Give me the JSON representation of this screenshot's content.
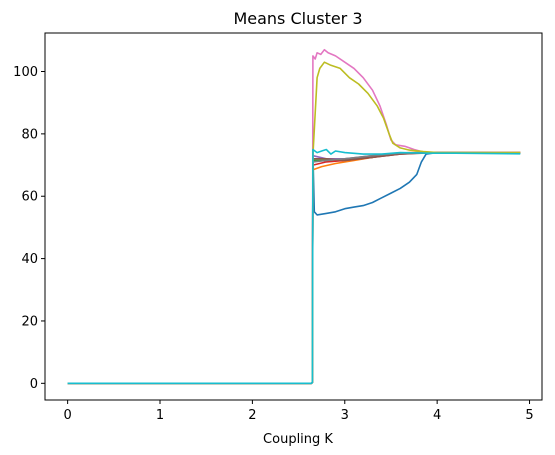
{
  "chart_data": {
    "type": "line",
    "title": "Means Cluster 3",
    "xlabel": "Coupling K",
    "ylabel": "",
    "xlim": [
      -0.245,
      5.135
    ],
    "ylim": [
      -5.35,
      112.35
    ],
    "xticks": [
      0,
      1,
      2,
      3,
      4,
      5
    ],
    "yticks": [
      0,
      20,
      40,
      60,
      80,
      100
    ],
    "grid": false,
    "series": [
      {
        "color": "#1f77b4",
        "points": [
          [
            0,
            0
          ],
          [
            2.64,
            0
          ],
          [
            2.65,
            0.3
          ],
          [
            2.655,
            74
          ],
          [
            2.67,
            55
          ],
          [
            2.7,
            54
          ],
          [
            2.8,
            54.5
          ],
          [
            2.9,
            55
          ],
          [
            3.0,
            56
          ],
          [
            3.1,
            56.5
          ],
          [
            3.2,
            57
          ],
          [
            3.3,
            58
          ],
          [
            3.4,
            59.5
          ],
          [
            3.5,
            61
          ],
          [
            3.6,
            62.5
          ],
          [
            3.7,
            64.5
          ],
          [
            3.78,
            67
          ],
          [
            3.83,
            71
          ],
          [
            3.88,
            73.5
          ],
          [
            4.0,
            74
          ],
          [
            4.5,
            74
          ],
          [
            4.9,
            73.8
          ]
        ]
      },
      {
        "color": "#ff7f0e",
        "points": [
          [
            0,
            0
          ],
          [
            2.64,
            0
          ],
          [
            2.65,
            0.3
          ],
          [
            2.655,
            68.5
          ],
          [
            2.75,
            69.5
          ],
          [
            2.9,
            70.5
          ],
          [
            3.1,
            71.5
          ],
          [
            3.3,
            72.5
          ],
          [
            3.5,
            73.5
          ],
          [
            3.7,
            74
          ],
          [
            4.0,
            74
          ],
          [
            4.5,
            73.8
          ],
          [
            4.9,
            74
          ]
        ]
      },
      {
        "color": "#2ca02c",
        "points": [
          [
            0,
            0
          ],
          [
            2.64,
            0
          ],
          [
            2.65,
            0.3
          ],
          [
            2.655,
            71.5
          ],
          [
            2.8,
            71.5
          ],
          [
            3.0,
            72
          ],
          [
            3.3,
            72.5
          ],
          [
            3.5,
            73.5
          ],
          [
            3.8,
            74
          ],
          [
            4.2,
            74
          ],
          [
            4.9,
            73.8
          ]
        ]
      },
      {
        "color": "#d62728",
        "points": [
          [
            0,
            0
          ],
          [
            2.64,
            0
          ],
          [
            2.65,
            0.3
          ],
          [
            2.655,
            70
          ],
          [
            2.8,
            71
          ],
          [
            3.0,
            71.5
          ],
          [
            3.3,
            72.5
          ],
          [
            3.6,
            73.5
          ],
          [
            3.9,
            74
          ],
          [
            4.9,
            74
          ]
        ]
      },
      {
        "color": "#9467bd",
        "points": [
          [
            0,
            0
          ],
          [
            2.64,
            0
          ],
          [
            2.65,
            0.3
          ],
          [
            2.655,
            73
          ],
          [
            2.8,
            72
          ],
          [
            3.0,
            72
          ],
          [
            3.3,
            73
          ],
          [
            3.6,
            73.8
          ],
          [
            4.0,
            74
          ],
          [
            4.9,
            73.8
          ]
        ]
      },
      {
        "color": "#8c564b",
        "points": [
          [
            0,
            0
          ],
          [
            2.64,
            0
          ],
          [
            2.65,
            0.3
          ],
          [
            2.655,
            72
          ],
          [
            2.8,
            72
          ],
          [
            3.0,
            71.5
          ],
          [
            3.3,
            72.5
          ],
          [
            3.6,
            73.5
          ],
          [
            4.0,
            74
          ],
          [
            4.9,
            74
          ]
        ]
      },
      {
        "color": "#e377c2",
        "points": [
          [
            0,
            0
          ],
          [
            2.64,
            0
          ],
          [
            2.65,
            0.3
          ],
          [
            2.655,
            105
          ],
          [
            2.68,
            104
          ],
          [
            2.7,
            106
          ],
          [
            2.74,
            105.5
          ],
          [
            2.78,
            107
          ],
          [
            2.82,
            106
          ],
          [
            2.9,
            105
          ],
          [
            3.0,
            103
          ],
          [
            3.1,
            101
          ],
          [
            3.2,
            98
          ],
          [
            3.3,
            94
          ],
          [
            3.38,
            89
          ],
          [
            3.45,
            83
          ],
          [
            3.5,
            78
          ],
          [
            3.55,
            76.5
          ],
          [
            3.65,
            76
          ],
          [
            3.75,
            75
          ],
          [
            3.85,
            74.2
          ],
          [
            4.0,
            74
          ],
          [
            4.9,
            74
          ]
        ]
      },
      {
        "color": "#7f7f7f",
        "points": [
          [
            0,
            0
          ],
          [
            2.64,
            0
          ],
          [
            2.65,
            0.3
          ],
          [
            2.655,
            71
          ],
          [
            2.8,
            71.5
          ],
          [
            3.0,
            72
          ],
          [
            3.3,
            73
          ],
          [
            3.6,
            73.8
          ],
          [
            4.0,
            74
          ],
          [
            4.9,
            73.8
          ]
        ]
      },
      {
        "color": "#bcbd22",
        "points": [
          [
            0,
            0
          ],
          [
            2.64,
            0
          ],
          [
            2.65,
            0.3
          ],
          [
            2.655,
            73
          ],
          [
            2.7,
            98
          ],
          [
            2.73,
            101
          ],
          [
            2.78,
            103
          ],
          [
            2.85,
            102
          ],
          [
            2.95,
            101
          ],
          [
            3.05,
            98
          ],
          [
            3.15,
            96
          ],
          [
            3.25,
            93
          ],
          [
            3.35,
            89
          ],
          [
            3.42,
            85
          ],
          [
            3.48,
            80
          ],
          [
            3.52,
            77
          ],
          [
            3.6,
            75.5
          ],
          [
            3.7,
            74.8
          ],
          [
            3.85,
            74.3
          ],
          [
            4.0,
            74
          ],
          [
            4.5,
            74
          ],
          [
            4.9,
            74
          ]
        ]
      },
      {
        "color": "#17becf",
        "points": [
          [
            0,
            0
          ],
          [
            2.64,
            0
          ],
          [
            2.65,
            0.3
          ],
          [
            2.655,
            75
          ],
          [
            2.7,
            74
          ],
          [
            2.75,
            74.5
          ],
          [
            2.8,
            75
          ],
          [
            2.85,
            73.5
          ],
          [
            2.9,
            74.5
          ],
          [
            3.0,
            74
          ],
          [
            3.2,
            73.5
          ],
          [
            3.4,
            73.5
          ],
          [
            3.6,
            74
          ],
          [
            3.9,
            73.8
          ],
          [
            4.2,
            73.8
          ],
          [
            4.9,
            73.6
          ]
        ]
      }
    ]
  }
}
